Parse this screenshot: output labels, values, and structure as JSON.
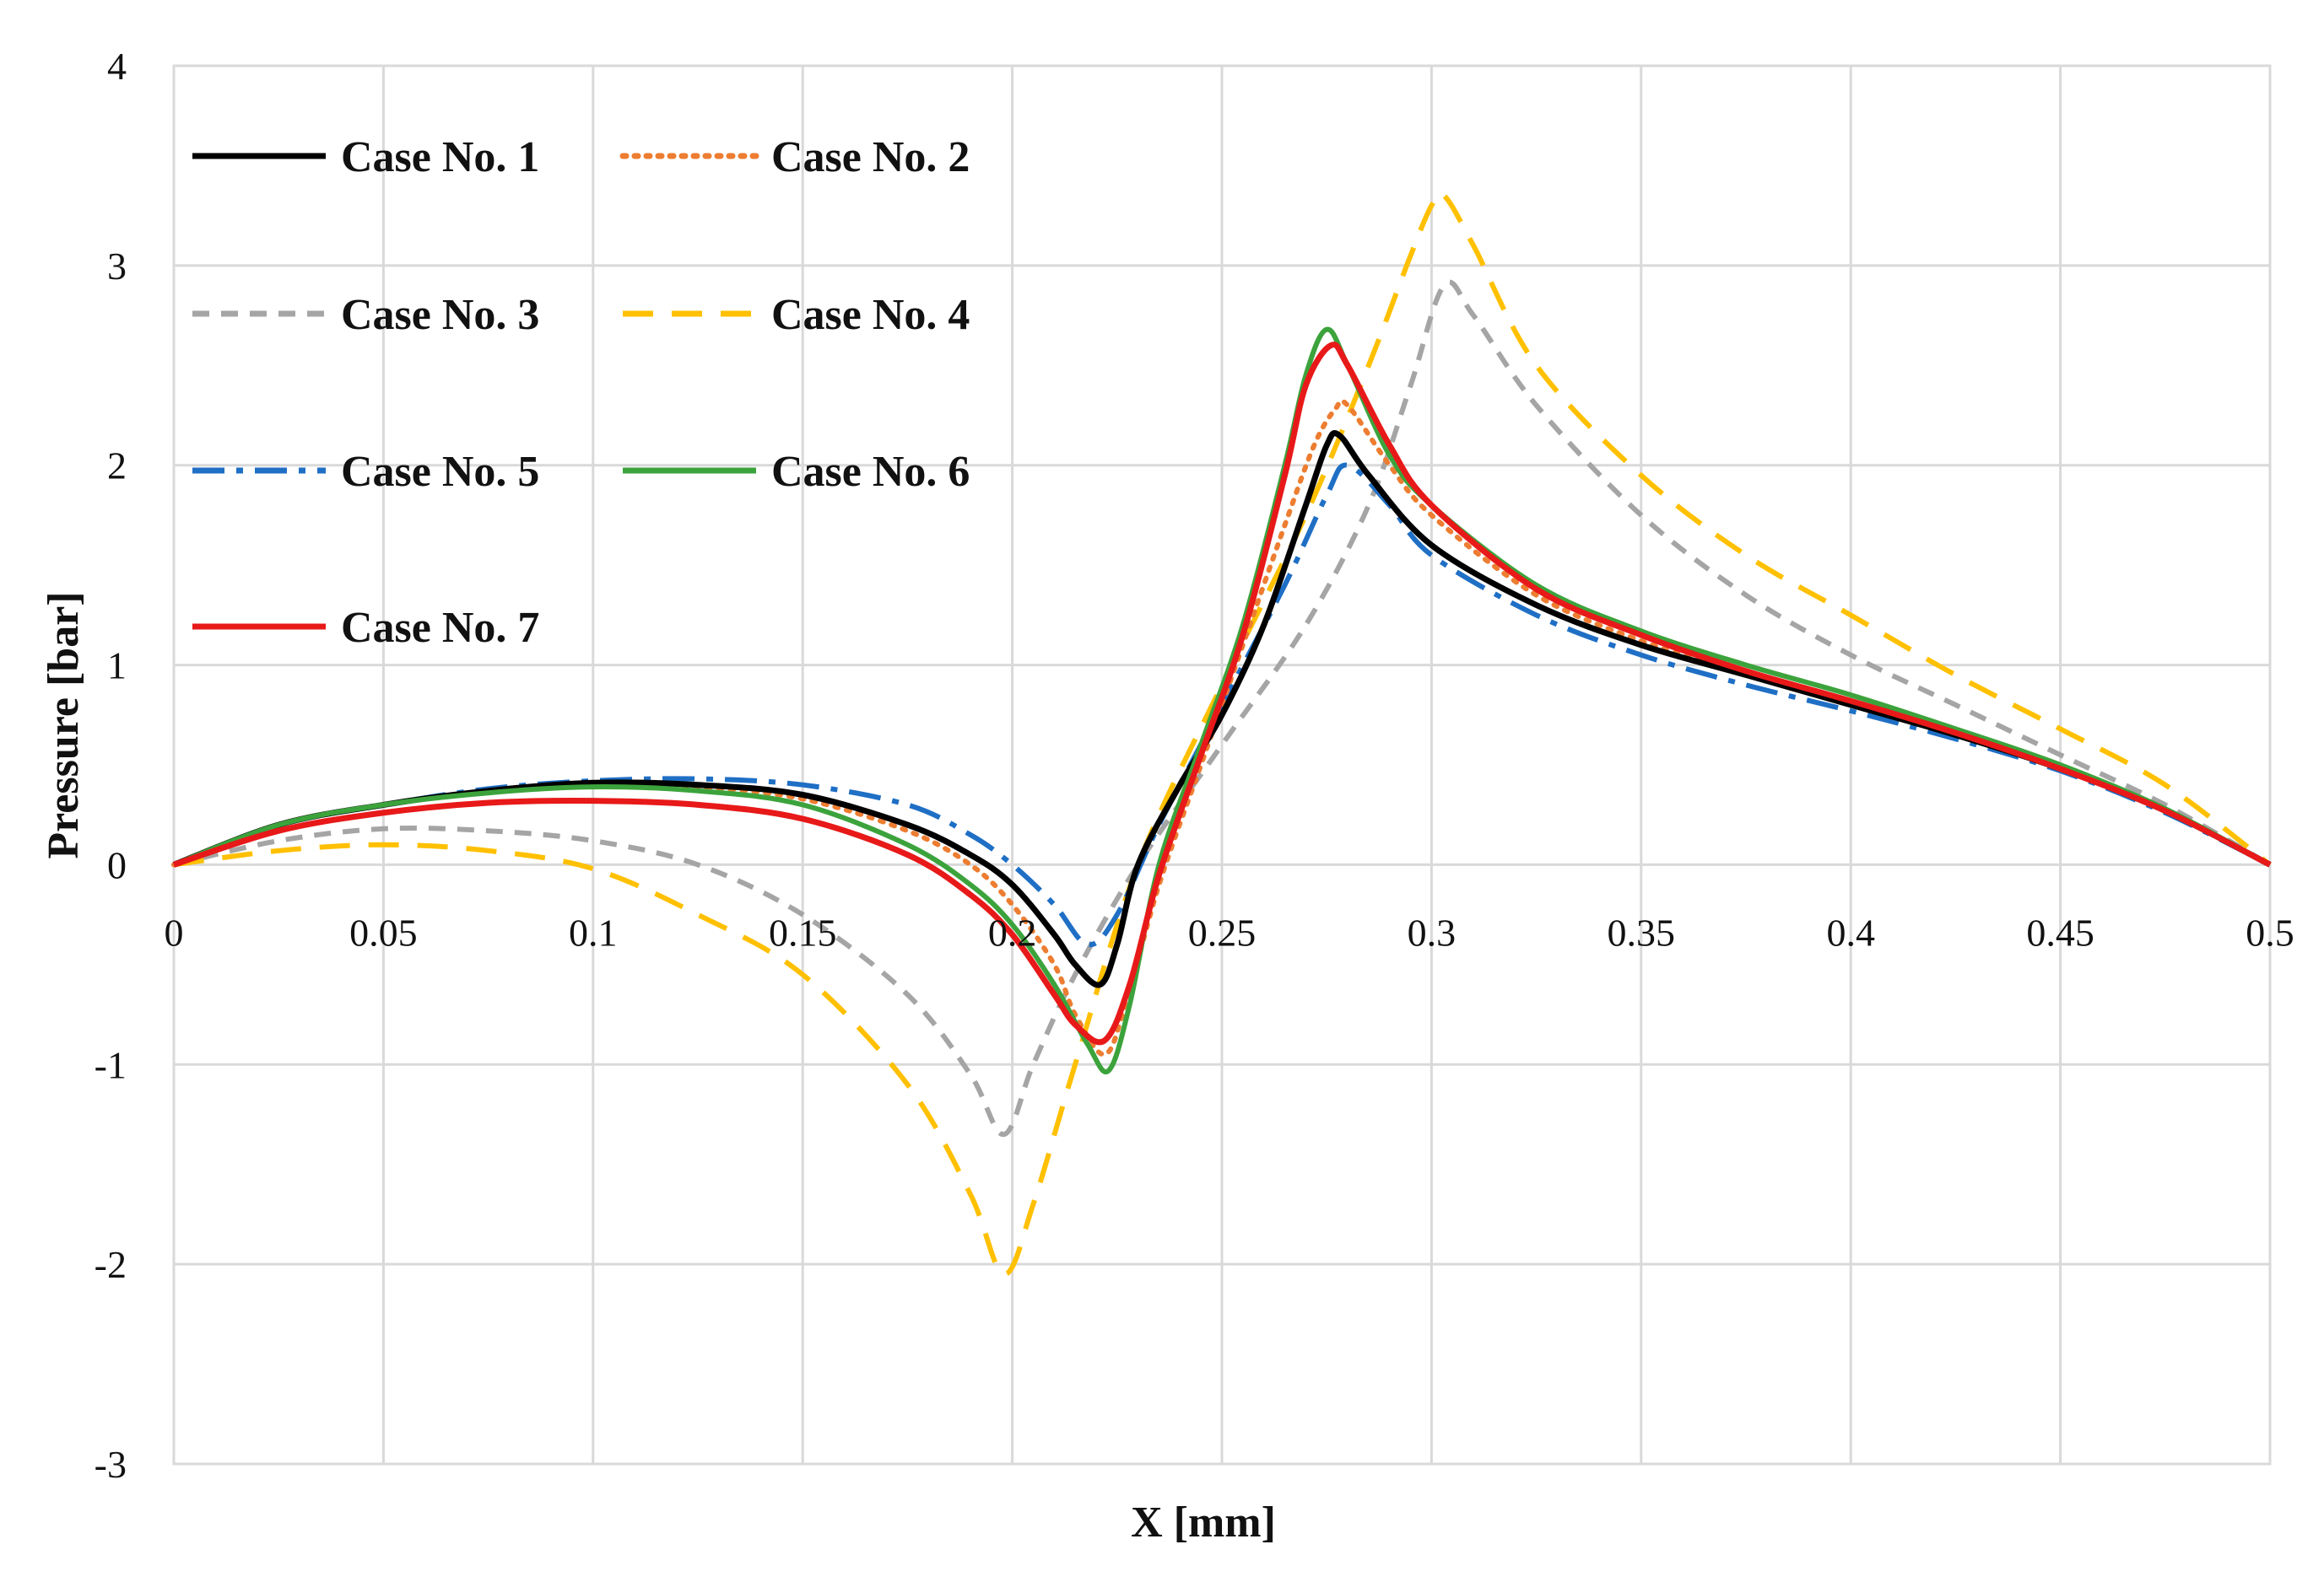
{
  "chart_data": {
    "type": "line",
    "title": "",
    "xlabel": "X [mm]",
    "ylabel": "Pressure [bar]",
    "xlim": [
      0,
      0.5
    ],
    "ylim": [
      -3,
      4
    ],
    "grid": true,
    "legend_position": "top-left",
    "x_ticks": [
      "0",
      "0.05",
      "0.1",
      "0.15",
      "0.2",
      "0.25",
      "0.3",
      "0.35",
      "0.4",
      "0.45",
      "0.5"
    ],
    "x_tick_values": [
      0,
      0.05,
      0.1,
      0.15,
      0.2,
      0.25,
      0.3,
      0.35,
      0.4,
      0.45,
      0.5
    ],
    "y_ticks": [
      "4",
      "3",
      "2",
      "1",
      "0",
      "-1",
      "-2",
      "-3"
    ],
    "y_tick_values": [
      4,
      3,
      2,
      1,
      0,
      -1,
      -2,
      -3
    ],
    "series": [
      {
        "name": "Case No. 1",
        "color": "#000000",
        "dash": "solid",
        "x": [
          0,
          0.025,
          0.05,
          0.075,
          0.1,
          0.125,
          0.15,
          0.175,
          0.19,
          0.2,
          0.21,
          0.215,
          0.221,
          0.225,
          0.23,
          0.24,
          0.25,
          0.26,
          0.27,
          0.275,
          0.278,
          0.285,
          0.3,
          0.325,
          0.35,
          0.375,
          0.4,
          0.425,
          0.45,
          0.475,
          0.5
        ],
        "y": [
          0,
          0.2,
          0.3,
          0.37,
          0.41,
          0.4,
          0.35,
          0.2,
          0.05,
          -0.1,
          -0.35,
          -0.5,
          -0.6,
          -0.4,
          0.0,
          0.4,
          0.75,
          1.2,
          1.8,
          2.1,
          2.15,
          1.95,
          1.6,
          1.3,
          1.1,
          0.95,
          0.8,
          0.65,
          0.48,
          0.27,
          0
        ]
      },
      {
        "name": "Case No. 2",
        "color": "#ED7D31",
        "dash": "dotted",
        "x": [
          0,
          0.025,
          0.05,
          0.075,
          0.1,
          0.125,
          0.15,
          0.175,
          0.19,
          0.2,
          0.21,
          0.215,
          0.222,
          0.227,
          0.235,
          0.245,
          0.255,
          0.265,
          0.272,
          0.277,
          0.28,
          0.29,
          0.3,
          0.325,
          0.35,
          0.375,
          0.4,
          0.425,
          0.45,
          0.475,
          0.5
        ],
        "y": [
          0,
          0.2,
          0.3,
          0.37,
          0.4,
          0.39,
          0.33,
          0.17,
          0.0,
          -0.2,
          -0.5,
          -0.75,
          -0.95,
          -0.7,
          -0.1,
          0.5,
          1.1,
          1.7,
          2.1,
          2.28,
          2.3,
          2.0,
          1.75,
          1.35,
          1.12,
          0.95,
          0.8,
          0.65,
          0.48,
          0.27,
          0
        ]
      },
      {
        "name": "Case No. 3",
        "color": "#A5A5A5",
        "dash": "dashed",
        "x": [
          0,
          0.025,
          0.05,
          0.075,
          0.1,
          0.125,
          0.15,
          0.175,
          0.19,
          0.198,
          0.205,
          0.215,
          0.23,
          0.25,
          0.27,
          0.285,
          0.295,
          0.303,
          0.31,
          0.325,
          0.35,
          0.375,
          0.4,
          0.425,
          0.45,
          0.475,
          0.5
        ],
        "y": [
          0,
          0.12,
          0.18,
          0.17,
          0.12,
          0.0,
          -0.25,
          -0.65,
          -1.05,
          -1.35,
          -1.0,
          -0.55,
          0.0,
          0.6,
          1.2,
          1.8,
          2.4,
          2.9,
          2.75,
          2.3,
          1.75,
          1.35,
          1.05,
          0.8,
          0.55,
          0.3,
          0
        ]
      },
      {
        "name": "Case No. 4",
        "color": "#FFC000",
        "dash": "long-dashed",
        "x": [
          0,
          0.025,
          0.05,
          0.075,
          0.1,
          0.125,
          0.15,
          0.175,
          0.19,
          0.198,
          0.205,
          0.215,
          0.23,
          0.25,
          0.27,
          0.285,
          0.295,
          0.3,
          0.303,
          0.31,
          0.325,
          0.35,
          0.375,
          0.4,
          0.425,
          0.45,
          0.475,
          0.5
        ],
        "y": [
          0,
          0.07,
          0.1,
          0.07,
          -0.02,
          -0.25,
          -0.55,
          -1.1,
          -1.65,
          -2.05,
          -1.7,
          -1.0,
          0.0,
          0.9,
          1.75,
          2.5,
          3.05,
          3.3,
          3.35,
          3.1,
          2.5,
          1.95,
          1.55,
          1.25,
          0.95,
          0.68,
          0.4,
          0
        ]
      },
      {
        "name": "Case No. 5",
        "color": "#1F6FC5",
        "dash": "dash-dot",
        "x": [
          0,
          0.025,
          0.05,
          0.075,
          0.1,
          0.125,
          0.15,
          0.175,
          0.19,
          0.2,
          0.21,
          0.218,
          0.225,
          0.235,
          0.25,
          0.265,
          0.275,
          0.28,
          0.29,
          0.3,
          0.325,
          0.35,
          0.375,
          0.4,
          0.425,
          0.45,
          0.475,
          0.5
        ],
        "y": [
          0,
          0.2,
          0.3,
          0.38,
          0.42,
          0.43,
          0.4,
          0.3,
          0.15,
          0.0,
          -0.2,
          -0.4,
          -0.25,
          0.2,
          0.8,
          1.4,
          1.85,
          2.0,
          1.8,
          1.55,
          1.25,
          1.05,
          0.9,
          0.77,
          0.63,
          0.47,
          0.26,
          0
        ]
      },
      {
        "name": "Case No. 6",
        "color": "#3CA33C",
        "dash": "solid",
        "x": [
          0,
          0.025,
          0.05,
          0.075,
          0.1,
          0.125,
          0.15,
          0.175,
          0.19,
          0.2,
          0.21,
          0.218,
          0.223,
          0.228,
          0.235,
          0.245,
          0.255,
          0.265,
          0.27,
          0.275,
          0.28,
          0.29,
          0.3,
          0.325,
          0.35,
          0.375,
          0.4,
          0.425,
          0.45,
          0.475,
          0.5
        ],
        "y": [
          0,
          0.2,
          0.3,
          0.36,
          0.39,
          0.37,
          0.3,
          0.1,
          -0.1,
          -0.3,
          -0.6,
          -0.9,
          -1.03,
          -0.7,
          0.0,
          0.6,
          1.2,
          2.0,
          2.45,
          2.68,
          2.5,
          2.05,
          1.8,
          1.4,
          1.17,
          1.0,
          0.85,
          0.68,
          0.5,
          0.28,
          0
        ]
      },
      {
        "name": "Case No. 7",
        "color": "#E81919",
        "dash": "solid",
        "x": [
          0,
          0.025,
          0.05,
          0.075,
          0.1,
          0.125,
          0.15,
          0.175,
          0.19,
          0.2,
          0.21,
          0.215,
          0.222,
          0.228,
          0.235,
          0.245,
          0.255,
          0.265,
          0.27,
          0.276,
          0.28,
          0.29,
          0.3,
          0.325,
          0.35,
          0.375,
          0.4,
          0.425,
          0.45,
          0.475,
          0.5
        ],
        "y": [
          0,
          0.17,
          0.26,
          0.31,
          0.32,
          0.3,
          0.23,
          0.05,
          -0.15,
          -0.35,
          -0.65,
          -0.8,
          -0.88,
          -0.6,
          -0.05,
          0.55,
          1.15,
          1.95,
          2.4,
          2.6,
          2.5,
          2.1,
          1.8,
          1.38,
          1.15,
          0.97,
          0.82,
          0.66,
          0.48,
          0.27,
          0
        ]
      }
    ]
  }
}
